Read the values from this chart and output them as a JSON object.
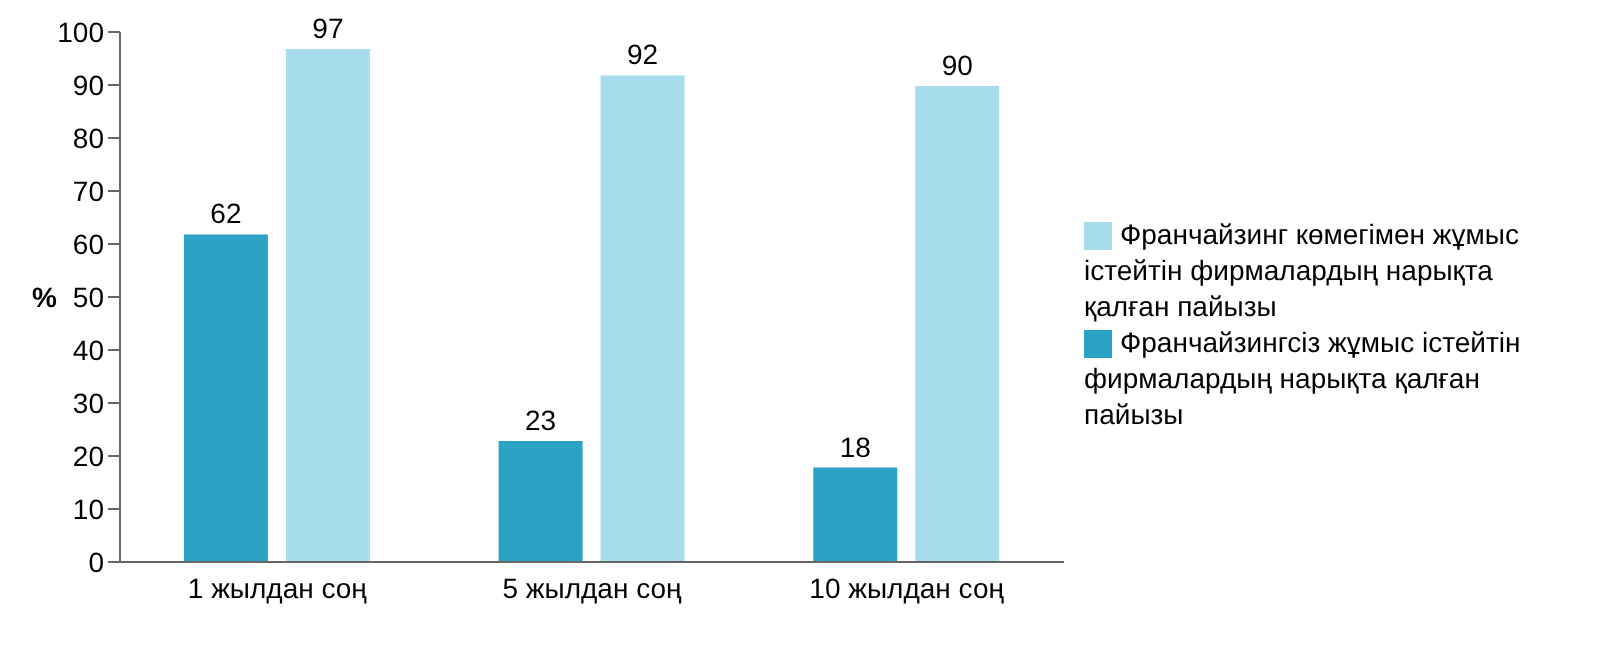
{
  "chart_data": {
    "type": "bar",
    "ylabel": "%",
    "categories": [
      "1 жылдан соң",
      "5 жылдан соң",
      "10 жылдан соң"
    ],
    "series": [
      {
        "name": "Франчайзингсіз жұмыс істейтін фирмалардың нарықта қалған пайызы",
        "color": "#2ba3c4",
        "values": [
          62,
          23,
          18
        ]
      },
      {
        "name": "Франчайзинг көмегімен жұмыс істейтін фирмалардың нарықта қалған пайызы",
        "color": "#a6dcec",
        "values": [
          97,
          92,
          90
        ]
      }
    ],
    "ylim": [
      0,
      100
    ],
    "yticks": [
      0,
      10,
      20,
      30,
      40,
      50,
      60,
      70,
      80,
      90,
      100
    ],
    "data_labels": true,
    "grid": false,
    "legend": "right"
  }
}
